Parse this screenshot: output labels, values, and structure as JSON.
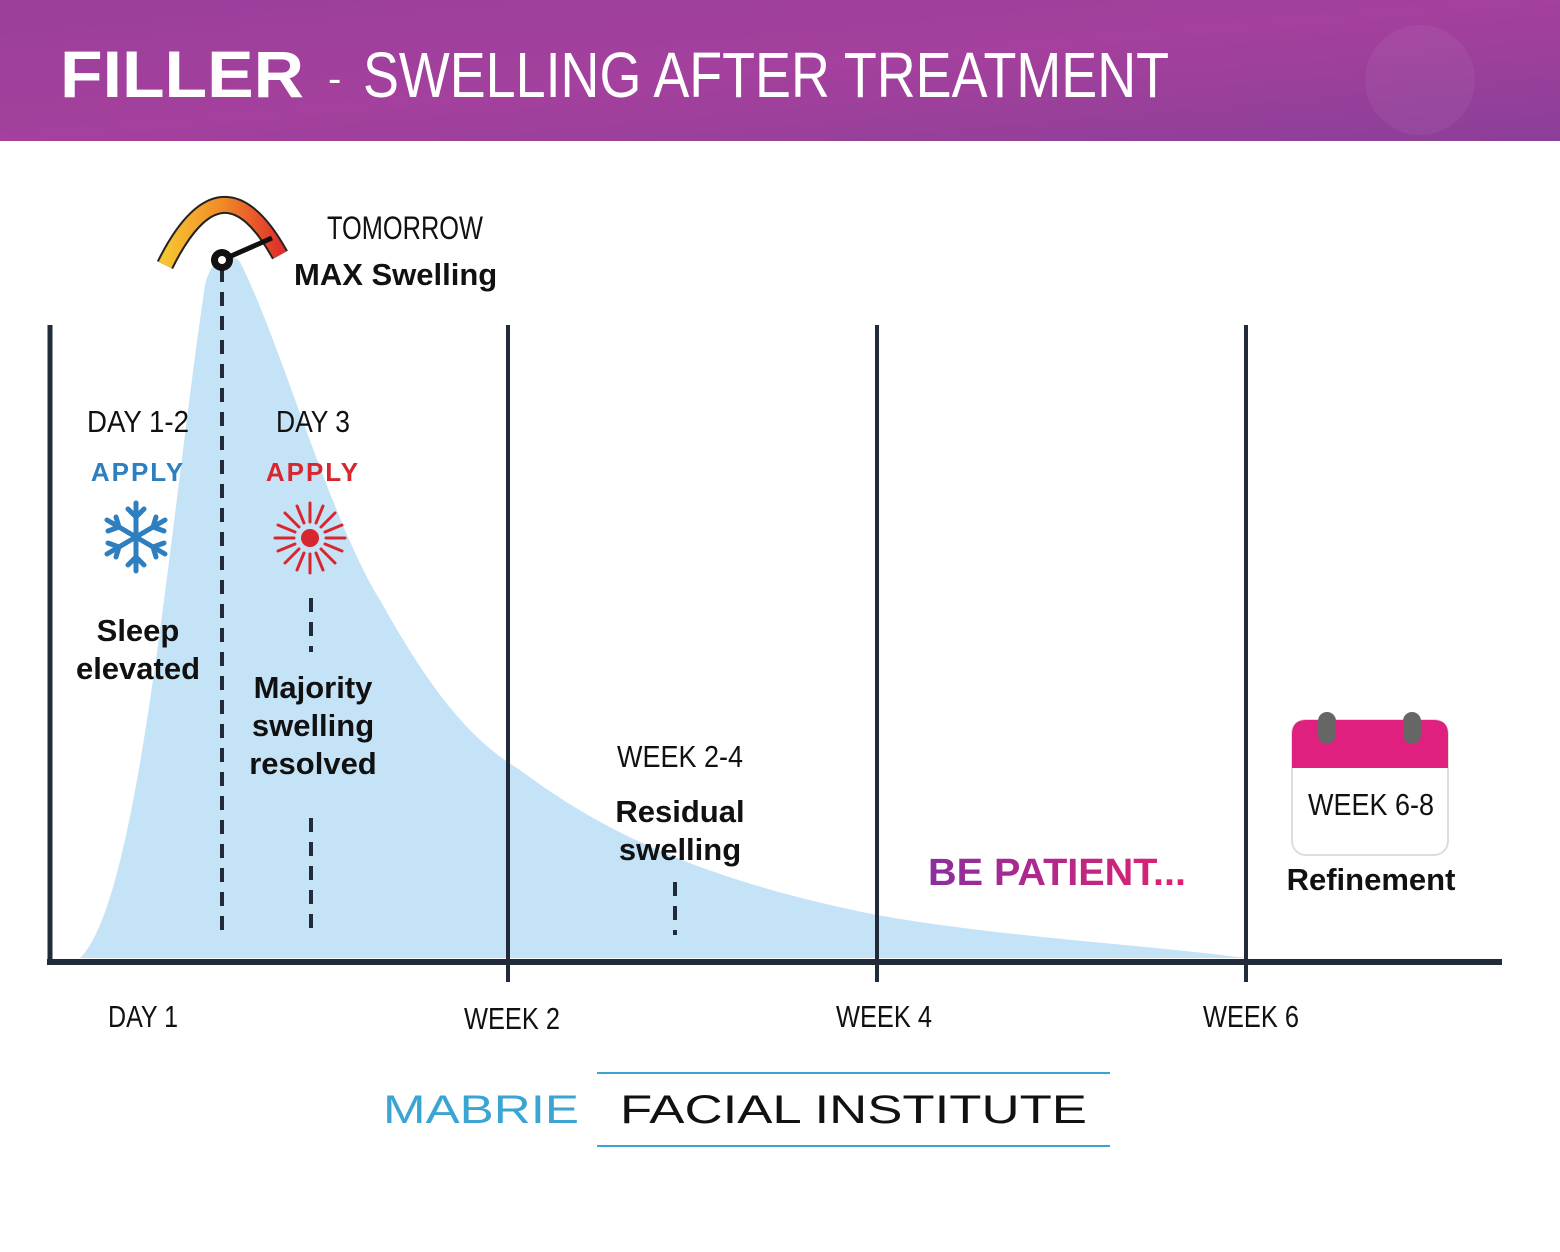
{
  "header": {
    "title_bold": "FILLER",
    "separator": "-",
    "title_rest": "SWELLING AFTER TREATMENT"
  },
  "peak": {
    "when": "TOMORROW",
    "label": "MAX Swelling"
  },
  "phases": [
    {
      "period": "DAY 1-2",
      "action": "APPLY",
      "icon": "snowflake-icon",
      "note_lines": [
        "Sleep",
        "elevated"
      ]
    },
    {
      "period": "DAY 3",
      "action": "APPLY",
      "icon": "heat-sun-icon",
      "note_lines": [
        "Majority",
        "swelling",
        "resolved"
      ]
    },
    {
      "period": "WEEK 2-4",
      "note_lines": [
        "Residual",
        "swelling"
      ]
    },
    {
      "period": "WEEK 6-8",
      "icon": "calendar-icon",
      "note_lines": [
        "Refinement"
      ]
    }
  ],
  "be_patient": "BE PATIENT...",
  "x_axis": {
    "ticks": [
      "DAY 1",
      "WEEK 2",
      "WEEK 4",
      "WEEK 6"
    ]
  },
  "logo": {
    "brand": "MABRIE",
    "name": "FACIAL INSTITUTE"
  },
  "colors": {
    "header": "#9b3f9e",
    "curve_fill": "#c5e3f6",
    "cold": "#2e7fc0",
    "heat": "#d8262e",
    "calendar": "#e0207e",
    "logo_blue": "#3aa5d3"
  }
}
